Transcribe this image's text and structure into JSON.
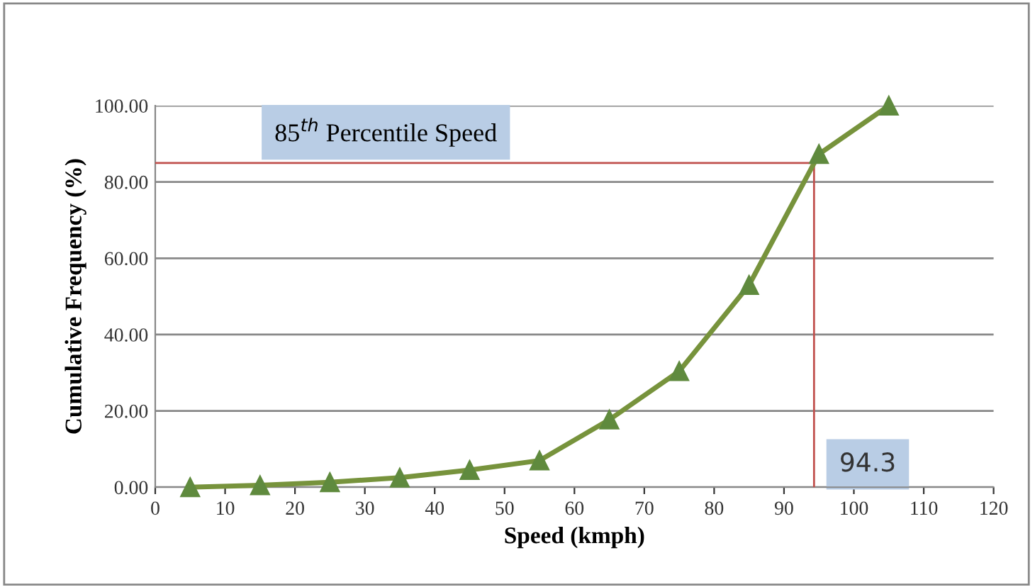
{
  "chart_data": {
    "type": "line",
    "xlabel": "Speed (kmph)",
    "ylabel": "Cumulative Frequency (%)",
    "x": [
      5,
      15,
      25,
      35,
      45,
      55,
      65,
      75,
      85,
      95,
      105
    ],
    "series": [
      {
        "color": "#77933c",
        "values": [
          0,
          0.5,
          1.3,
          2.5,
          4.5,
          7,
          17.7,
          30.4,
          53,
          87.3,
          100
        ]
      }
    ],
    "marker": "triangle",
    "line_style": "solid",
    "xlim": [
      0,
      120
    ],
    "xticks": [
      0,
      10,
      20,
      30,
      40,
      50,
      60,
      70,
      80,
      90,
      100,
      110,
      120
    ],
    "ylim": [
      0,
      100
    ],
    "yticks": [
      {
        "value": 0,
        "label": "0.00"
      },
      {
        "value": 20,
        "label": "20.00"
      },
      {
        "value": 40,
        "label": "40.00"
      },
      {
        "value": 60,
        "label": "60.00"
      },
      {
        "value": 80,
        "label": "80.00"
      },
      {
        "value": 100,
        "label": "100.00"
      }
    ],
    "grid": "y",
    "ref_lines": [
      {
        "axis": "y",
        "value": 85,
        "label": "85$^{th}$ Percentile Speed",
        "color": "#c0504d"
      },
      {
        "axis": "x",
        "value": 94.3,
        "label": "94.3",
        "color": "#c0504d"
      }
    ]
  }
}
